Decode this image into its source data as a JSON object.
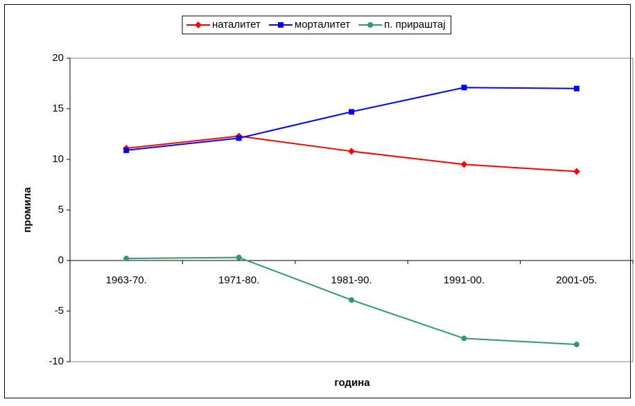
{
  "chart_data": {
    "type": "line",
    "categories": [
      "1963-70.",
      "1971-80.",
      "1981-90.",
      "1991-00.",
      "2001-05."
    ],
    "series": [
      {
        "name": "наталитет",
        "color": "#ff0000",
        "marker": "diamond",
        "values": [
          11.1,
          12.3,
          10.8,
          9.5,
          8.8
        ]
      },
      {
        "name": "морталитет",
        "color": "#0000ff",
        "marker": "square",
        "values": [
          10.9,
          12.1,
          14.7,
          17.1,
          17.0
        ]
      },
      {
        "name": "п. прираштај",
        "color": "#339966",
        "marker": "circle",
        "values": [
          0.2,
          0.3,
          -3.9,
          -7.7,
          -8.3
        ]
      }
    ],
    "ylim": [
      -10,
      20
    ],
    "yticks": [
      -10,
      -5,
      0,
      5,
      10,
      15,
      20
    ],
    "xlabel": "година",
    "ylabel": "промила",
    "legend": "top"
  }
}
